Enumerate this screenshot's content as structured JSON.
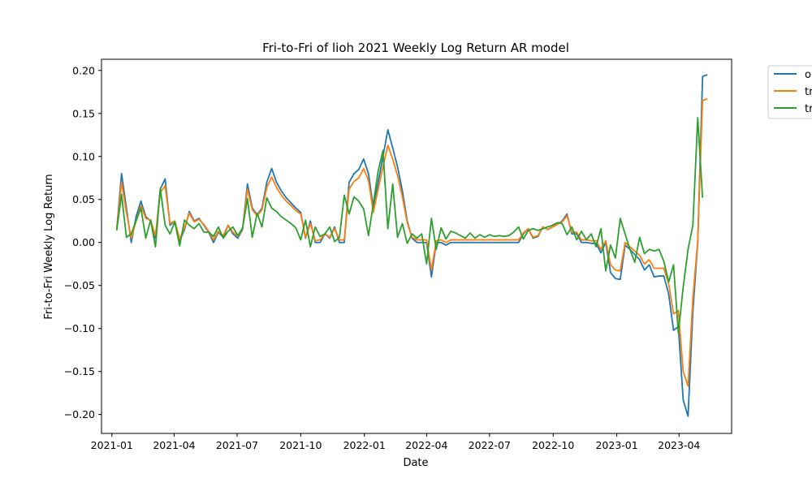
{
  "chart_data": {
    "type": "line",
    "title": "Fri-to-Fri of lioh 2021 Weekly Log Return AR model",
    "xlabel": "Date",
    "ylabel": "Fri-to-Fri Weekly Log Return",
    "x_ticks": [
      "2021-01",
      "2021-04",
      "2021-07",
      "2021-10",
      "2022-01",
      "2022-04",
      "2022-07",
      "2022-10",
      "2023-01",
      "2023-04"
    ],
    "y_ticks": [
      "0.20",
      "0.15",
      "0.10",
      "0.05",
      "0.00",
      "−0.05",
      "−0.10",
      "−0.15",
      "−0.20"
    ],
    "xlim": [
      "2020-12-17",
      "2023-06-16"
    ],
    "ylim": [
      -0.222,
      0.213
    ],
    "legend": {
      "location": "outside-top-right",
      "entries": [
        "ol",
        "tr",
        "tr"
      ]
    },
    "colors": {
      "series1": "#1f77b4",
      "series2": "#ff7f0e",
      "series3": "#2ca02c"
    },
    "series": [
      {
        "name": "ol",
        "color": "#1f77b4",
        "values": [
          0.015,
          0.08,
          0.04,
          0.0,
          0.03,
          0.048,
          0.03,
          0.025,
          0.005,
          0.062,
          0.074,
          0.02,
          0.025,
          0.002,
          0.015,
          0.036,
          0.025,
          0.028,
          0.02,
          0.012,
          0.0,
          0.012,
          0.006,
          0.02,
          0.01,
          0.005,
          0.015,
          0.068,
          0.04,
          0.032,
          0.04,
          0.07,
          0.086,
          0.07,
          0.06,
          0.052,
          0.046,
          0.04,
          0.035,
          0.005,
          0.025,
          0.0,
          0.0,
          0.01,
          0.005,
          0.018,
          0.0,
          0.0,
          0.07,
          0.08,
          0.085,
          0.097,
          0.08,
          0.04,
          0.07,
          0.1,
          0.131,
          0.11,
          0.088,
          0.06,
          0.025,
          0.005,
          0.0,
          0.0,
          0.0,
          -0.04,
          0.0,
          0.0,
          -0.003,
          0.0,
          0.0,
          0.0,
          0.0,
          0.0,
          0.0,
          0.0,
          0.0,
          0.0,
          0.0,
          0.0,
          0.0,
          0.0,
          0.0,
          0.0,
          0.01,
          0.016,
          0.005,
          0.007,
          0.018,
          0.015,
          0.018,
          0.021,
          0.025,
          0.033,
          0.01,
          0.01,
          0.0,
          0.0,
          -0.001,
          -0.001,
          -0.012,
          0.0,
          -0.035,
          -0.042,
          -0.043,
          -0.003,
          -0.008,
          -0.014,
          -0.02,
          -0.032,
          -0.026,
          -0.04,
          -0.039,
          -0.039,
          -0.06,
          -0.102,
          -0.098,
          -0.183,
          -0.202,
          -0.08,
          0.0,
          0.193,
          0.195
        ]
      },
      {
        "name": "tr",
        "color": "#ff7f0e",
        "values": [
          0.015,
          0.07,
          0.035,
          0.005,
          0.025,
          0.043,
          0.028,
          0.026,
          0.008,
          0.058,
          0.066,
          0.022,
          0.025,
          0.004,
          0.017,
          0.034,
          0.024,
          0.027,
          0.021,
          0.013,
          0.003,
          0.013,
          0.008,
          0.02,
          0.012,
          0.007,
          0.016,
          0.062,
          0.038,
          0.031,
          0.038,
          0.064,
          0.076,
          0.064,
          0.055,
          0.048,
          0.043,
          0.037,
          0.033,
          0.006,
          0.022,
          0.002,
          0.003,
          0.01,
          0.006,
          0.016,
          0.003,
          0.003,
          0.062,
          0.071,
          0.075,
          0.086,
          0.072,
          0.035,
          0.062,
          0.088,
          0.113,
          0.097,
          0.078,
          0.053,
          0.023,
          0.006,
          0.003,
          0.003,
          0.003,
          -0.032,
          0.002,
          0.003,
          0.0,
          0.003,
          0.003,
          0.003,
          0.003,
          0.003,
          0.003,
          0.003,
          0.003,
          0.003,
          0.003,
          0.003,
          0.003,
          0.003,
          0.003,
          0.003,
          0.011,
          0.016,
          0.006,
          0.008,
          0.018,
          0.015,
          0.018,
          0.021,
          0.024,
          0.031,
          0.012,
          0.012,
          0.003,
          0.003,
          0.002,
          0.002,
          -0.008,
          0.002,
          -0.026,
          -0.032,
          -0.033,
          0.0,
          -0.005,
          -0.01,
          -0.015,
          -0.025,
          -0.02,
          -0.03,
          -0.03,
          -0.03,
          -0.048,
          -0.083,
          -0.079,
          -0.15,
          -0.167,
          -0.065,
          0.002,
          0.165,
          0.167
        ]
      },
      {
        "name": "tr",
        "color": "#2ca02c",
        "values": [
          0.014,
          0.056,
          0.006,
          0.01,
          0.025,
          0.04,
          0.005,
          0.026,
          -0.005,
          0.063,
          0.02,
          0.01,
          0.024,
          -0.004,
          0.026,
          0.02,
          0.016,
          0.022,
          0.012,
          0.012,
          0.007,
          0.018,
          0.005,
          0.013,
          0.018,
          0.008,
          0.017,
          0.051,
          0.006,
          0.034,
          0.018,
          0.052,
          0.04,
          0.036,
          0.03,
          0.026,
          0.022,
          0.017,
          0.003,
          0.026,
          -0.005,
          0.018,
          0.007,
          0.01,
          0.018,
          0.001,
          0.006,
          0.055,
          0.033,
          0.053,
          0.048,
          0.039,
          0.008,
          0.045,
          0.083,
          0.107,
          0.016,
          0.068,
          0.006,
          0.022,
          -0.001,
          0.01,
          0.005,
          0.01,
          -0.025,
          0.028,
          -0.008,
          0.017,
          0.004,
          0.013,
          0.011,
          0.008,
          0.005,
          0.011,
          0.005,
          0.009,
          0.006,
          0.009,
          0.007,
          0.008,
          0.007,
          0.008,
          0.012,
          0.018,
          0.004,
          0.014,
          0.016,
          0.014,
          0.016,
          0.018,
          0.02,
          0.023,
          0.022,
          0.009,
          0.018,
          0.003,
          0.013,
          0.003,
          0.01,
          -0.005,
          0.016,
          -0.033,
          -0.003,
          -0.018,
          0.028,
          0.01,
          -0.008,
          -0.023,
          0.006,
          -0.013,
          -0.008,
          -0.01,
          -0.008,
          -0.022,
          -0.046,
          -0.026,
          -0.105,
          -0.052,
          -0.008,
          0.02,
          0.145,
          0.052
        ]
      }
    ]
  }
}
